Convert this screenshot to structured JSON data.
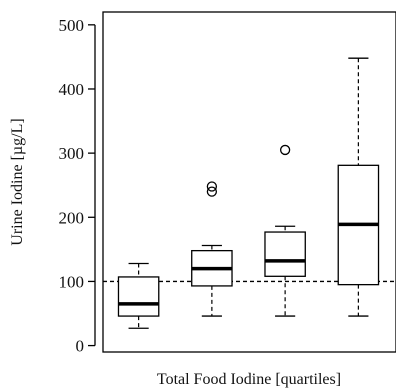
{
  "chart_data": {
    "type": "boxplot",
    "xlabel": "Total Food Iodine [quartiles]",
    "ylabel": "Urine Iodine [µg/L]",
    "ylim": [
      -10,
      520
    ],
    "yticks": [
      0,
      100,
      200,
      300,
      400,
      500
    ],
    "reference_line": {
      "y": 100,
      "style": "dashed"
    },
    "box_color": "#000000",
    "boxes": [
      {
        "whisker_low": 27,
        "q1": 46,
        "median": 65,
        "q3": 107,
        "whisker_high": 128,
        "outliers": []
      },
      {
        "whisker_low": 46,
        "q1": 93,
        "median": 120,
        "q3": 148,
        "whisker_high": 156,
        "outliers": [
          240,
          248
        ]
      },
      {
        "whisker_low": 46,
        "q1": 108,
        "median": 132,
        "q3": 177,
        "whisker_high": 186,
        "outliers": [
          305
        ]
      },
      {
        "whisker_low": 46,
        "q1": 95,
        "median": 189,
        "q3": 281,
        "whisker_high": 448,
        "outliers": []
      }
    ]
  }
}
